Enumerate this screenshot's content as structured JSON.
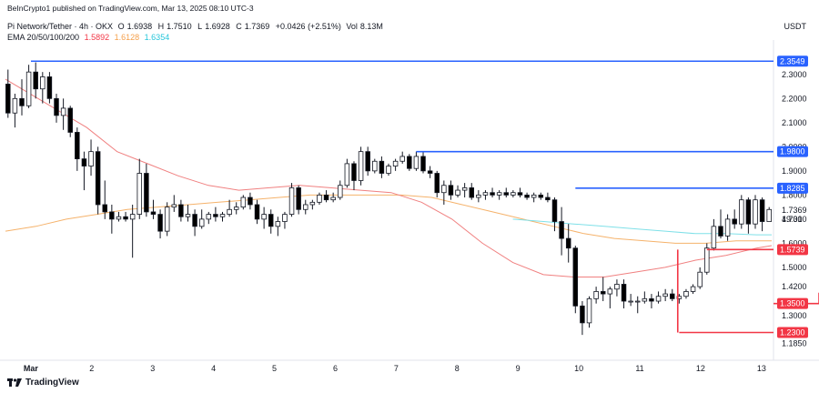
{
  "header": {
    "published": "BeInCrypto1 published on TradingView.com, Mar 13, 2025 08:10 UTC-3",
    "symbol": "Pi Network/Tether · 4h · OKX",
    "ohlc": {
      "open_label": "O",
      "open": "1.6938",
      "high_label": "H",
      "high": "1.7510",
      "low_label": "L",
      "low": "1.6928",
      "close_label": "C",
      "close": "1.7369",
      "change": "+0.0426 (+2.51%)",
      "volume_label": "Vol",
      "volume": "8.13M"
    },
    "ema": {
      "label": "EMA 20/50/100/200",
      "v20": "1.5892",
      "v50": "1.6128",
      "v100": "1.6354"
    },
    "currency": "USDT"
  },
  "brand": "TradingView",
  "colors": {
    "up": "#ffffff",
    "down": "#000000",
    "wick": "#131722",
    "ema20": "#f08080",
    "ema50": "#f5b26b",
    "ema100": "#7fe0e8",
    "resistance": "#2962ff",
    "support": "#f23645",
    "text": "#131722"
  },
  "chart_data": {
    "type": "candlestick",
    "timeframe": "4h",
    "ylim": [
      1.13,
      2.42
    ],
    "x_labels": [
      {
        "label": "Mar",
        "x": 5
      },
      {
        "label": "2",
        "x": 17
      },
      {
        "label": "3",
        "x": 29
      },
      {
        "label": "4",
        "x": 41
      },
      {
        "label": "5",
        "x": 53
      },
      {
        "label": "6",
        "x": 65
      },
      {
        "label": "7",
        "x": 77
      },
      {
        "label": "8",
        "x": 89
      },
      {
        "label": "9",
        "x": 101
      },
      {
        "label": "10",
        "x": 113
      },
      {
        "label": "11",
        "x": 125
      },
      {
        "label": "12",
        "x": 137
      },
      {
        "label": "13",
        "x": 149
      }
    ],
    "x_range": [
      0,
      151
    ],
    "y_ticks": [
      "2.3000",
      "2.2000",
      "2.1000",
      "2.0000",
      "1.9000",
      "1.8000",
      "1.7000",
      "1.6000",
      "1.5000",
      "1.4200",
      "1.3000",
      "1.1850"
    ],
    "candles": [
      {
        "x": 0,
        "o": 2.26,
        "h": 2.32,
        "l": 2.12,
        "c": 2.14
      },
      {
        "x": 1,
        "o": 2.14,
        "h": 2.22,
        "l": 2.08,
        "c": 2.2
      },
      {
        "x": 2,
        "o": 2.2,
        "h": 2.28,
        "l": 2.13,
        "c": 2.17
      },
      {
        "x": 3,
        "o": 2.17,
        "h": 2.34,
        "l": 2.16,
        "c": 2.31
      },
      {
        "x": 4,
        "o": 2.31,
        "h": 2.35,
        "l": 2.2,
        "c": 2.24
      },
      {
        "x": 5,
        "o": 2.24,
        "h": 2.31,
        "l": 2.18,
        "c": 2.29
      },
      {
        "x": 6,
        "o": 2.29,
        "h": 2.31,
        "l": 2.18,
        "c": 2.2
      },
      {
        "x": 7,
        "o": 2.2,
        "h": 2.22,
        "l": 2.1,
        "c": 2.13
      },
      {
        "x": 8,
        "o": 2.13,
        "h": 2.2,
        "l": 2.07,
        "c": 2.16
      },
      {
        "x": 9,
        "o": 2.16,
        "h": 2.17,
        "l": 2.04,
        "c": 2.06
      },
      {
        "x": 10,
        "o": 2.06,
        "h": 2.08,
        "l": 1.9,
        "c": 1.95
      },
      {
        "x": 11,
        "o": 1.95,
        "h": 1.98,
        "l": 1.82,
        "c": 1.92
      },
      {
        "x": 12,
        "o": 1.92,
        "h": 2.03,
        "l": 1.88,
        "c": 1.98
      },
      {
        "x": 13,
        "o": 1.98,
        "h": 2.0,
        "l": 1.72,
        "c": 1.76
      },
      {
        "x": 14,
        "o": 1.76,
        "h": 1.86,
        "l": 1.7,
        "c": 1.73
      },
      {
        "x": 15,
        "o": 1.73,
        "h": 1.76,
        "l": 1.64,
        "c": 1.7
      },
      {
        "x": 16,
        "o": 1.7,
        "h": 1.73,
        "l": 1.69,
        "c": 1.71
      },
      {
        "x": 17,
        "o": 1.71,
        "h": 1.73,
        "l": 1.69,
        "c": 1.7
      },
      {
        "x": 18,
        "o": 1.7,
        "h": 1.76,
        "l": 1.54,
        "c": 1.72
      },
      {
        "x": 19,
        "o": 1.72,
        "h": 1.95,
        "l": 1.7,
        "c": 1.89
      },
      {
        "x": 20,
        "o": 1.89,
        "h": 1.93,
        "l": 1.71,
        "c": 1.73
      },
      {
        "x": 21,
        "o": 1.73,
        "h": 1.78,
        "l": 1.7,
        "c": 1.72
      },
      {
        "x": 22,
        "o": 1.72,
        "h": 1.74,
        "l": 1.62,
        "c": 1.65
      },
      {
        "x": 23,
        "o": 1.65,
        "h": 1.77,
        "l": 1.63,
        "c": 1.75
      },
      {
        "x": 24,
        "o": 1.75,
        "h": 1.8,
        "l": 1.73,
        "c": 1.76
      },
      {
        "x": 25,
        "o": 1.76,
        "h": 1.78,
        "l": 1.69,
        "c": 1.71
      },
      {
        "x": 26,
        "o": 1.71,
        "h": 1.76,
        "l": 1.69,
        "c": 1.72
      },
      {
        "x": 27,
        "o": 1.72,
        "h": 1.74,
        "l": 1.63,
        "c": 1.67
      },
      {
        "x": 28,
        "o": 1.67,
        "h": 1.74,
        "l": 1.66,
        "c": 1.7
      },
      {
        "x": 29,
        "o": 1.7,
        "h": 1.73,
        "l": 1.68,
        "c": 1.72
      },
      {
        "x": 30,
        "o": 1.72,
        "h": 1.75,
        "l": 1.69,
        "c": 1.71
      },
      {
        "x": 31,
        "o": 1.71,
        "h": 1.73,
        "l": 1.69,
        "c": 1.72
      },
      {
        "x": 32,
        "o": 1.72,
        "h": 1.78,
        "l": 1.71,
        "c": 1.74
      },
      {
        "x": 33,
        "o": 1.74,
        "h": 1.77,
        "l": 1.72,
        "c": 1.75
      },
      {
        "x": 34,
        "o": 1.75,
        "h": 1.8,
        "l": 1.74,
        "c": 1.79
      },
      {
        "x": 35,
        "o": 1.79,
        "h": 1.81,
        "l": 1.74,
        "c": 1.76
      },
      {
        "x": 36,
        "o": 1.76,
        "h": 1.78,
        "l": 1.68,
        "c": 1.7
      },
      {
        "x": 37,
        "o": 1.7,
        "h": 1.75,
        "l": 1.66,
        "c": 1.72
      },
      {
        "x": 38,
        "o": 1.72,
        "h": 1.74,
        "l": 1.64,
        "c": 1.67
      },
      {
        "x": 39,
        "o": 1.67,
        "h": 1.71,
        "l": 1.63,
        "c": 1.69
      },
      {
        "x": 40,
        "o": 1.69,
        "h": 1.73,
        "l": 1.66,
        "c": 1.72
      },
      {
        "x": 41,
        "o": 1.72,
        "h": 1.85,
        "l": 1.71,
        "c": 1.83
      },
      {
        "x": 42,
        "o": 1.83,
        "h": 1.84,
        "l": 1.72,
        "c": 1.74
      },
      {
        "x": 43,
        "o": 1.74,
        "h": 1.78,
        "l": 1.72,
        "c": 1.76
      },
      {
        "x": 44,
        "o": 1.76,
        "h": 1.78,
        "l": 1.74,
        "c": 1.77
      },
      {
        "x": 45,
        "o": 1.77,
        "h": 1.81,
        "l": 1.76,
        "c": 1.8
      },
      {
        "x": 46,
        "o": 1.8,
        "h": 1.82,
        "l": 1.77,
        "c": 1.78
      },
      {
        "x": 47,
        "o": 1.78,
        "h": 1.81,
        "l": 1.77,
        "c": 1.79
      },
      {
        "x": 48,
        "o": 1.79,
        "h": 1.86,
        "l": 1.78,
        "c": 1.84
      },
      {
        "x": 49,
        "o": 1.84,
        "h": 1.95,
        "l": 1.83,
        "c": 1.93
      },
      {
        "x": 50,
        "o": 1.93,
        "h": 1.94,
        "l": 1.82,
        "c": 1.86
      },
      {
        "x": 51,
        "o": 1.86,
        "h": 2.0,
        "l": 1.84,
        "c": 1.98
      },
      {
        "x": 52,
        "o": 1.98,
        "h": 2.0,
        "l": 1.88,
        "c": 1.9
      },
      {
        "x": 53,
        "o": 1.9,
        "h": 1.95,
        "l": 1.89,
        "c": 1.94
      },
      {
        "x": 54,
        "o": 1.94,
        "h": 1.96,
        "l": 1.87,
        "c": 1.89
      },
      {
        "x": 55,
        "o": 1.89,
        "h": 1.93,
        "l": 1.88,
        "c": 1.92
      },
      {
        "x": 56,
        "o": 1.92,
        "h": 1.95,
        "l": 1.9,
        "c": 1.94
      },
      {
        "x": 57,
        "o": 1.94,
        "h": 1.98,
        "l": 1.93,
        "c": 1.96
      },
      {
        "x": 58,
        "o": 1.96,
        "h": 1.97,
        "l": 1.9,
        "c": 1.91
      },
      {
        "x": 59,
        "o": 1.91,
        "h": 1.98,
        "l": 1.9,
        "c": 1.96
      },
      {
        "x": 60,
        "o": 1.96,
        "h": 1.98,
        "l": 1.89,
        "c": 1.9
      },
      {
        "x": 61,
        "o": 1.9,
        "h": 1.92,
        "l": 1.87,
        "c": 1.89
      },
      {
        "x": 62,
        "o": 1.89,
        "h": 1.9,
        "l": 1.79,
        "c": 1.81
      },
      {
        "x": 63,
        "o": 1.81,
        "h": 1.86,
        "l": 1.76,
        "c": 1.84
      },
      {
        "x": 64,
        "o": 1.84,
        "h": 1.86,
        "l": 1.78,
        "c": 1.8
      },
      {
        "x": 65,
        "o": 1.8,
        "h": 1.84,
        "l": 1.79,
        "c": 1.82
      },
      {
        "x": 66,
        "o": 1.82,
        "h": 1.85,
        "l": 1.79,
        "c": 1.83
      },
      {
        "x": 67,
        "o": 1.83,
        "h": 1.85,
        "l": 1.78,
        "c": 1.79
      },
      {
        "x": 68,
        "o": 1.79,
        "h": 1.82,
        "l": 1.77,
        "c": 1.8
      },
      {
        "x": 69,
        "o": 1.8,
        "h": 1.82,
        "l": 1.78,
        "c": 1.81
      },
      {
        "x": 70,
        "o": 1.81,
        "h": 1.83,
        "l": 1.79,
        "c": 1.8
      },
      {
        "x": 71,
        "o": 1.8,
        "h": 1.82,
        "l": 1.78,
        "c": 1.81
      },
      {
        "x": 72,
        "o": 1.81,
        "h": 1.83,
        "l": 1.79,
        "c": 1.8
      },
      {
        "x": 73,
        "o": 1.8,
        "h": 1.82,
        "l": 1.79,
        "c": 1.81
      },
      {
        "x": 74,
        "o": 1.81,
        "h": 1.83,
        "l": 1.79,
        "c": 1.8
      },
      {
        "x": 75,
        "o": 1.8,
        "h": 1.81,
        "l": 1.78,
        "c": 1.79
      },
      {
        "x": 76,
        "o": 1.79,
        "h": 1.81,
        "l": 1.77,
        "c": 1.8
      },
      {
        "x": 77,
        "o": 1.8,
        "h": 1.81,
        "l": 1.78,
        "c": 1.79
      },
      {
        "x": 78,
        "o": 1.79,
        "h": 1.81,
        "l": 1.77,
        "c": 1.78
      },
      {
        "x": 79,
        "o": 1.78,
        "h": 1.79,
        "l": 1.65,
        "c": 1.69
      },
      {
        "x": 80,
        "o": 1.69,
        "h": 1.75,
        "l": 1.55,
        "c": 1.62
      },
      {
        "x": 81,
        "o": 1.62,
        "h": 1.68,
        "l": 1.52,
        "c": 1.58
      },
      {
        "x": 82,
        "o": 1.58,
        "h": 1.59,
        "l": 1.31,
        "c": 1.34
      },
      {
        "x": 83,
        "o": 1.34,
        "h": 1.36,
        "l": 1.22,
        "c": 1.27
      },
      {
        "x": 84,
        "o": 1.27,
        "h": 1.38,
        "l": 1.25,
        "c": 1.37
      },
      {
        "x": 85,
        "o": 1.37,
        "h": 1.42,
        "l": 1.35,
        "c": 1.4
      },
      {
        "x": 86,
        "o": 1.4,
        "h": 1.46,
        "l": 1.36,
        "c": 1.39
      },
      {
        "x": 87,
        "o": 1.39,
        "h": 1.42,
        "l": 1.33,
        "c": 1.41
      },
      {
        "x": 88,
        "o": 1.41,
        "h": 1.45,
        "l": 1.38,
        "c": 1.43
      },
      {
        "x": 89,
        "o": 1.43,
        "h": 1.45,
        "l": 1.33,
        "c": 1.36
      },
      {
        "x": 90,
        "o": 1.36,
        "h": 1.39,
        "l": 1.34,
        "c": 1.36
      },
      {
        "x": 91,
        "o": 1.36,
        "h": 1.38,
        "l": 1.31,
        "c": 1.36
      },
      {
        "x": 92,
        "o": 1.36,
        "h": 1.4,
        "l": 1.35,
        "c": 1.37
      },
      {
        "x": 93,
        "o": 1.37,
        "h": 1.39,
        "l": 1.33,
        "c": 1.36
      },
      {
        "x": 94,
        "o": 1.36,
        "h": 1.4,
        "l": 1.35,
        "c": 1.38
      },
      {
        "x": 95,
        "o": 1.38,
        "h": 1.41,
        "l": 1.36,
        "c": 1.39
      },
      {
        "x": 96,
        "o": 1.39,
        "h": 1.41,
        "l": 1.36,
        "c": 1.37
      },
      {
        "x": 97,
        "o": 1.37,
        "h": 1.39,
        "l": 1.35,
        "c": 1.38
      },
      {
        "x": 98,
        "o": 1.38,
        "h": 1.41,
        "l": 1.37,
        "c": 1.4
      },
      {
        "x": 99,
        "o": 1.4,
        "h": 1.43,
        "l": 1.39,
        "c": 1.42
      },
      {
        "x": 100,
        "o": 1.42,
        "h": 1.5,
        "l": 1.41,
        "c": 1.48
      },
      {
        "x": 101,
        "o": 1.48,
        "h": 1.6,
        "l": 1.47,
        "c": 1.58
      },
      {
        "x": 102,
        "o": 1.58,
        "h": 1.7,
        "l": 1.57,
        "c": 1.67
      },
      {
        "x": 103,
        "o": 1.67,
        "h": 1.74,
        "l": 1.62,
        "c": 1.63
      },
      {
        "x": 104,
        "o": 1.63,
        "h": 1.72,
        "l": 1.61,
        "c": 1.7
      },
      {
        "x": 105,
        "o": 1.7,
        "h": 1.74,
        "l": 1.66,
        "c": 1.68
      },
      {
        "x": 106,
        "o": 1.68,
        "h": 1.8,
        "l": 1.66,
        "c": 1.78
      },
      {
        "x": 107,
        "o": 1.78,
        "h": 1.79,
        "l": 1.64,
        "c": 1.68
      },
      {
        "x": 108,
        "o": 1.68,
        "h": 1.8,
        "l": 1.66,
        "c": 1.78
      },
      {
        "x": 109,
        "o": 1.78,
        "h": 1.79,
        "l": 1.65,
        "c": 1.69
      },
      {
        "x": 110,
        "o": 1.69,
        "h": 1.75,
        "l": 1.69,
        "c": 1.74
      }
    ],
    "candle_x_map": {
      "note_hidden": true
    },
    "ema20": [
      [
        0,
        2.28
      ],
      [
        8,
        2.18
      ],
      [
        16,
        2.08
      ],
      [
        22,
        1.98
      ],
      [
        28,
        1.93
      ],
      [
        34,
        1.88
      ],
      [
        40,
        1.84
      ],
      [
        46,
        1.82
      ],
      [
        52,
        1.83
      ],
      [
        58,
        1.84
      ],
      [
        64,
        1.83
      ],
      [
        70,
        1.82
      ],
      [
        76,
        1.81
      ],
      [
        82,
        1.77
      ],
      [
        88,
        1.7
      ],
      [
        94,
        1.6
      ],
      [
        100,
        1.52
      ],
      [
        106,
        1.47
      ],
      [
        112,
        1.46
      ],
      [
        118,
        1.46
      ],
      [
        124,
        1.48
      ],
      [
        130,
        1.5
      ],
      [
        136,
        1.53
      ],
      [
        142,
        1.55
      ],
      [
        148,
        1.58
      ],
      [
        151,
        1.59
      ]
    ],
    "ema50": [
      [
        0,
        1.65
      ],
      [
        6,
        1.67
      ],
      [
        12,
        1.7
      ],
      [
        18,
        1.72
      ],
      [
        24,
        1.74
      ],
      [
        30,
        1.75
      ],
      [
        36,
        1.76
      ],
      [
        42,
        1.77
      ],
      [
        48,
        1.78
      ],
      [
        54,
        1.79
      ],
      [
        60,
        1.8
      ],
      [
        66,
        1.8
      ],
      [
        72,
        1.8
      ],
      [
        78,
        1.8
      ],
      [
        84,
        1.79
      ],
      [
        90,
        1.76
      ],
      [
        96,
        1.73
      ],
      [
        102,
        1.7
      ],
      [
        108,
        1.67
      ],
      [
        114,
        1.64
      ],
      [
        120,
        1.62
      ],
      [
        126,
        1.61
      ],
      [
        132,
        1.6
      ],
      [
        138,
        1.6
      ],
      [
        144,
        1.61
      ],
      [
        151,
        1.61
      ]
    ],
    "ema100": [
      [
        100,
        1.7
      ],
      [
        106,
        1.69
      ],
      [
        112,
        1.68
      ],
      [
        118,
        1.67
      ],
      [
        124,
        1.66
      ],
      [
        130,
        1.65
      ],
      [
        136,
        1.64
      ],
      [
        142,
        1.64
      ],
      [
        148,
        1.635
      ],
      [
        151,
        1.635
      ]
    ],
    "levels": [
      {
        "price": 2.3549,
        "label": "2.3549",
        "kind": "resistance",
        "x_start": 5
      },
      {
        "price": 1.98,
        "label": "1.9800",
        "kind": "resistance",
        "x_start": 59
      },
      {
        "price": 1.8285,
        "label": "1.8285",
        "kind": "resistance",
        "x_start": 82
      },
      {
        "price": 1.5739,
        "label": "1.5739",
        "kind": "support",
        "x_start": 101
      },
      {
        "price": 1.35,
        "label": "1.3500",
        "kind": "support",
        "x_start": 118
      },
      {
        "price": 1.23,
        "label": "1.2300",
        "kind": "support",
        "x_start": 97
      }
    ],
    "support_vertical": {
      "x": 101,
      "from": 1.23,
      "to": 1.5739
    },
    "support_vertical_2": {
      "x": 118,
      "from": 1.35,
      "to": 1.395
    },
    "last_price": {
      "value": "1.7369",
      "countdown": "49:31"
    }
  }
}
